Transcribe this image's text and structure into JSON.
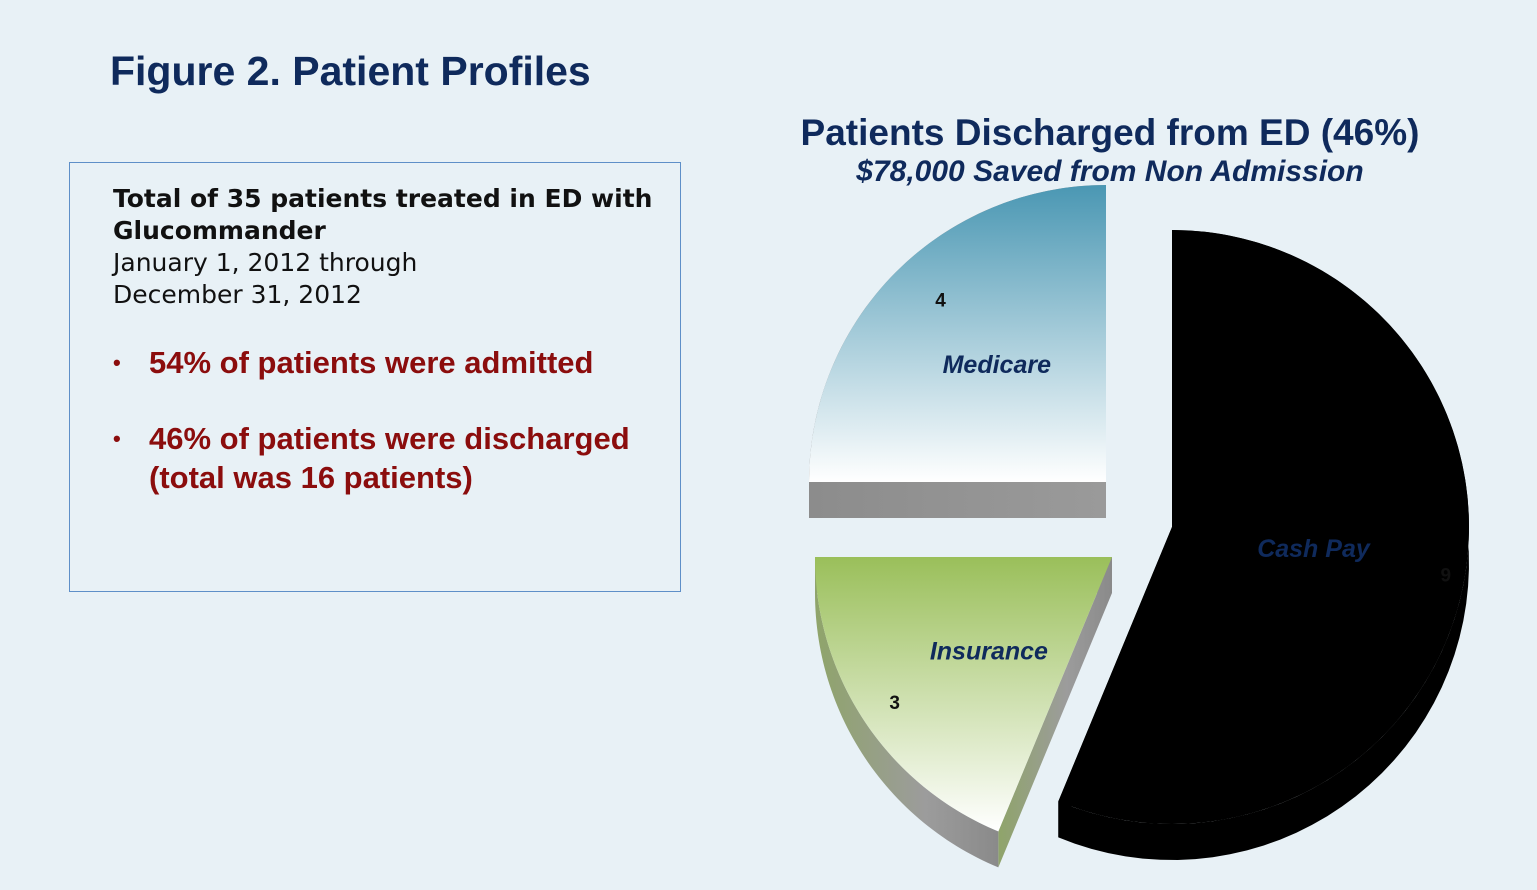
{
  "figure_title": "Figure 2. Patient Profiles",
  "summary": {
    "heading": "Total of 35 patients treated in ED with Glucommander",
    "period_line1": "January 1, 2012 through",
    "period_line2": "December 31, 2012"
  },
  "bullets": [
    "54% of patients were admitted",
    "46% of patients were discharged  (total was 16 patients)"
  ],
  "colors": {
    "title": "#0f2a5c",
    "bullet_text": "#8b0d0d",
    "medicare": "#4a97b3",
    "insurance": "#9abf5a",
    "cash_pay": "#ff7314"
  },
  "chart_data": {
    "type": "pie",
    "title": "Patients Discharged from ED (46%)",
    "subtitle": "$78,000 Saved from Non Admission",
    "style": "exploded 3d",
    "slices": [
      {
        "label": "Medicare",
        "value": 4
      },
      {
        "label": "Insurance",
        "value": 3
      },
      {
        "label": "Cash Pay",
        "value": 9
      }
    ]
  }
}
